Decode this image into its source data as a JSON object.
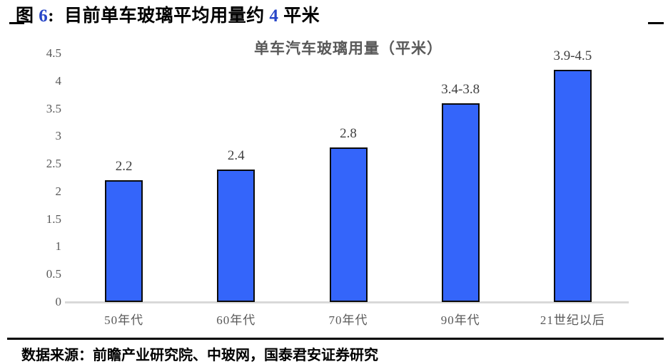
{
  "header": {
    "fig_label": "图",
    "fig_number": "6",
    "fig_colon": ":",
    "title_pre": "目前单车玻璃平均用量约",
    "title_number": "4",
    "title_post": "平米",
    "accent_blue": "#2846C8"
  },
  "chart_data": {
    "type": "bar",
    "title": "单车汽车玻璃用量（平米）",
    "categories": [
      "50年代",
      "60年代",
      "70年代",
      "90年代",
      "21世纪以后"
    ],
    "values": [
      2.2,
      2.4,
      2.8,
      3.6,
      4.2
    ],
    "value_labels": [
      "2.2",
      "2.4",
      "2.8",
      "3.4-3.8",
      "3.9-4.5"
    ],
    "ylim": [
      0,
      4.5
    ],
    "ytick_step": 0.5,
    "yticks": [
      "0",
      "0.5",
      "1",
      "1.5",
      "2",
      "2.5",
      "3",
      "3.5",
      "4",
      "4.5"
    ],
    "xlabel": "",
    "ylabel": "",
    "grid": false,
    "legend": "none",
    "bar_color": "#3465FA",
    "bar_border_color": "#0a0a0a",
    "axis_line_color": "#D9D9D9",
    "text_color": "#595959"
  },
  "footer": {
    "source_text": "数据来源：前瞻产业研究院、中玻网，国泰君安证券研究"
  }
}
